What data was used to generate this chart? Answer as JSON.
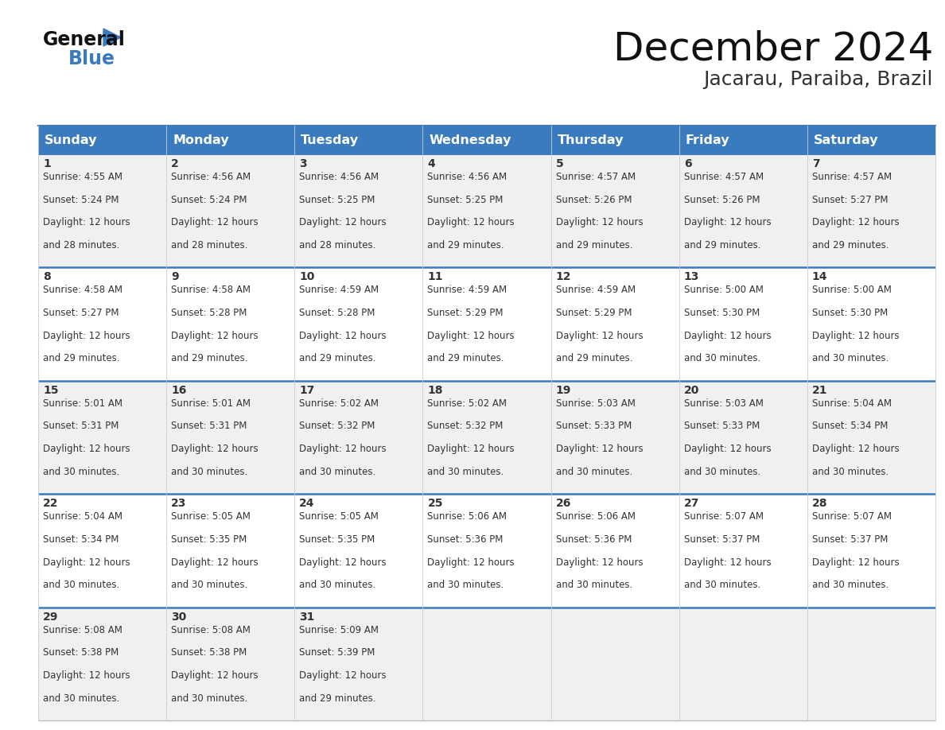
{
  "title": "December 2024",
  "subtitle": "Jacarau, Paraiba, Brazil",
  "days_of_week": [
    "Sunday",
    "Monday",
    "Tuesday",
    "Wednesday",
    "Thursday",
    "Friday",
    "Saturday"
  ],
  "header_bg": "#3a7bbf",
  "header_text": "#ffffff",
  "row_bg_odd": "#f0f0f0",
  "row_bg_even": "#ffffff",
  "cell_text_color": "#333333",
  "day_num_color": "#333333",
  "grid_line_color": "#3a7bbf",
  "calendar_data": [
    {
      "day": 1,
      "col": 0,
      "row": 0,
      "sunrise": "4:55 AM",
      "sunset": "5:24 PM",
      "daylight_min": "28"
    },
    {
      "day": 2,
      "col": 1,
      "row": 0,
      "sunrise": "4:56 AM",
      "sunset": "5:24 PM",
      "daylight_min": "28"
    },
    {
      "day": 3,
      "col": 2,
      "row": 0,
      "sunrise": "4:56 AM",
      "sunset": "5:25 PM",
      "daylight_min": "28"
    },
    {
      "day": 4,
      "col": 3,
      "row": 0,
      "sunrise": "4:56 AM",
      "sunset": "5:25 PM",
      "daylight_min": "29"
    },
    {
      "day": 5,
      "col": 4,
      "row": 0,
      "sunrise": "4:57 AM",
      "sunset": "5:26 PM",
      "daylight_min": "29"
    },
    {
      "day": 6,
      "col": 5,
      "row": 0,
      "sunrise": "4:57 AM",
      "sunset": "5:26 PM",
      "daylight_min": "29"
    },
    {
      "day": 7,
      "col": 6,
      "row": 0,
      "sunrise": "4:57 AM",
      "sunset": "5:27 PM",
      "daylight_min": "29"
    },
    {
      "day": 8,
      "col": 0,
      "row": 1,
      "sunrise": "4:58 AM",
      "sunset": "5:27 PM",
      "daylight_min": "29"
    },
    {
      "day": 9,
      "col": 1,
      "row": 1,
      "sunrise": "4:58 AM",
      "sunset": "5:28 PM",
      "daylight_min": "29"
    },
    {
      "day": 10,
      "col": 2,
      "row": 1,
      "sunrise": "4:59 AM",
      "sunset": "5:28 PM",
      "daylight_min": "29"
    },
    {
      "day": 11,
      "col": 3,
      "row": 1,
      "sunrise": "4:59 AM",
      "sunset": "5:29 PM",
      "daylight_min": "29"
    },
    {
      "day": 12,
      "col": 4,
      "row": 1,
      "sunrise": "4:59 AM",
      "sunset": "5:29 PM",
      "daylight_min": "29"
    },
    {
      "day": 13,
      "col": 5,
      "row": 1,
      "sunrise": "5:00 AM",
      "sunset": "5:30 PM",
      "daylight_min": "30"
    },
    {
      "day": 14,
      "col": 6,
      "row": 1,
      "sunrise": "5:00 AM",
      "sunset": "5:30 PM",
      "daylight_min": "30"
    },
    {
      "day": 15,
      "col": 0,
      "row": 2,
      "sunrise": "5:01 AM",
      "sunset": "5:31 PM",
      "daylight_min": "30"
    },
    {
      "day": 16,
      "col": 1,
      "row": 2,
      "sunrise": "5:01 AM",
      "sunset": "5:31 PM",
      "daylight_min": "30"
    },
    {
      "day": 17,
      "col": 2,
      "row": 2,
      "sunrise": "5:02 AM",
      "sunset": "5:32 PM",
      "daylight_min": "30"
    },
    {
      "day": 18,
      "col": 3,
      "row": 2,
      "sunrise": "5:02 AM",
      "sunset": "5:32 PM",
      "daylight_min": "30"
    },
    {
      "day": 19,
      "col": 4,
      "row": 2,
      "sunrise": "5:03 AM",
      "sunset": "5:33 PM",
      "daylight_min": "30"
    },
    {
      "day": 20,
      "col": 5,
      "row": 2,
      "sunrise": "5:03 AM",
      "sunset": "5:33 PM",
      "daylight_min": "30"
    },
    {
      "day": 21,
      "col": 6,
      "row": 2,
      "sunrise": "5:04 AM",
      "sunset": "5:34 PM",
      "daylight_min": "30"
    },
    {
      "day": 22,
      "col": 0,
      "row": 3,
      "sunrise": "5:04 AM",
      "sunset": "5:34 PM",
      "daylight_min": "30"
    },
    {
      "day": 23,
      "col": 1,
      "row": 3,
      "sunrise": "5:05 AM",
      "sunset": "5:35 PM",
      "daylight_min": "30"
    },
    {
      "day": 24,
      "col": 2,
      "row": 3,
      "sunrise": "5:05 AM",
      "sunset": "5:35 PM",
      "daylight_min": "30"
    },
    {
      "day": 25,
      "col": 3,
      "row": 3,
      "sunrise": "5:06 AM",
      "sunset": "5:36 PM",
      "daylight_min": "30"
    },
    {
      "day": 26,
      "col": 4,
      "row": 3,
      "sunrise": "5:06 AM",
      "sunset": "5:36 PM",
      "daylight_min": "30"
    },
    {
      "day": 27,
      "col": 5,
      "row": 3,
      "sunrise": "5:07 AM",
      "sunset": "5:37 PM",
      "daylight_min": "30"
    },
    {
      "day": 28,
      "col": 6,
      "row": 3,
      "sunrise": "5:07 AM",
      "sunset": "5:37 PM",
      "daylight_min": "30"
    },
    {
      "day": 29,
      "col": 0,
      "row": 4,
      "sunrise": "5:08 AM",
      "sunset": "5:38 PM",
      "daylight_min": "30"
    },
    {
      "day": 30,
      "col": 1,
      "row": 4,
      "sunrise": "5:08 AM",
      "sunset": "5:38 PM",
      "daylight_min": "30"
    },
    {
      "day": 31,
      "col": 2,
      "row": 4,
      "sunrise": "5:09 AM",
      "sunset": "5:39 PM",
      "daylight_min": "29"
    }
  ],
  "num_rows": 5,
  "num_cols": 7,
  "fig_width": 11.88,
  "fig_height": 9.18,
  "dpi": 100
}
